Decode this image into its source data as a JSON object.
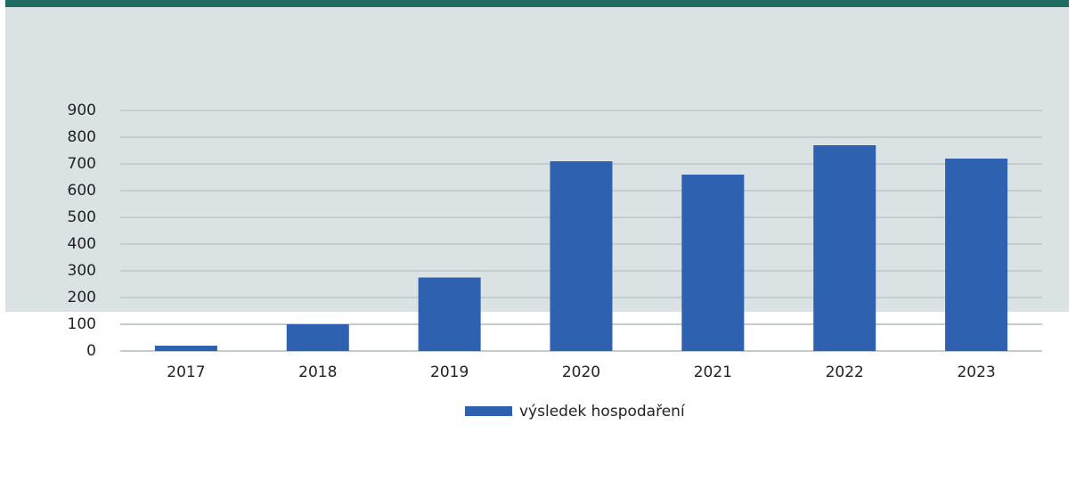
{
  "chart_data": {
    "type": "bar",
    "categories": [
      "2017",
      "2018",
      "2019",
      "2020",
      "2021",
      "2022",
      "2023"
    ],
    "series": [
      {
        "name": "výsledek hospodaření",
        "color": "#2e62b1",
        "values": [
          20,
          100,
          275,
          710,
          660,
          770,
          720
        ]
      }
    ],
    "ylim": [
      0,
      900
    ],
    "yticks": [
      0,
      100,
      200,
      300,
      400,
      500,
      600,
      700,
      800,
      900
    ],
    "grid": true,
    "legend": "bottom"
  }
}
